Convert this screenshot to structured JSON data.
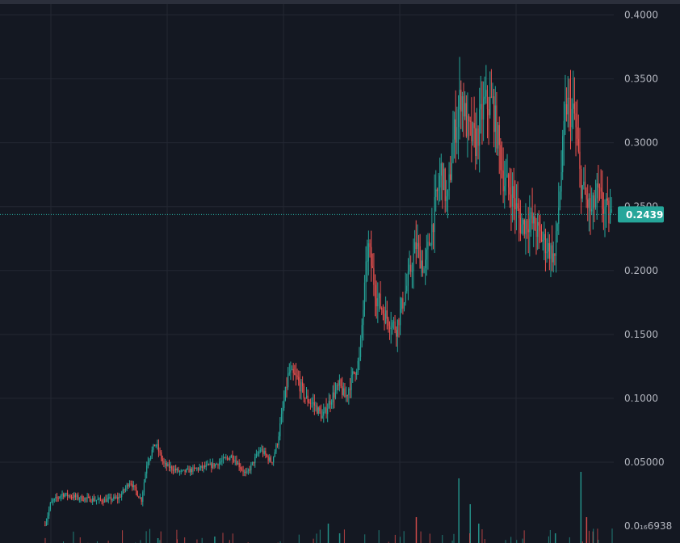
{
  "chart_data": {
    "type": "candlestick",
    "y_axis": {
      "position": "right",
      "ylim": [
        0.0,
        0.41
      ],
      "ticks": [
        {
          "value": 0.4,
          "label": "0.4000"
        },
        {
          "value": 0.35,
          "label": "0.3500"
        },
        {
          "value": 0.3,
          "label": "0.3000"
        },
        {
          "value": 0.25,
          "label": "0.2500"
        },
        {
          "value": 0.2,
          "label": "0.2000"
        },
        {
          "value": 0.15,
          "label": "0.1500"
        },
        {
          "value": 0.1,
          "label": "0.1000"
        },
        {
          "value": 0.05,
          "label": "0.05000"
        },
        {
          "value": 0.0,
          "label": "0.0₁₆6938"
        }
      ]
    },
    "grid": true,
    "current_price": {
      "value": 0.2439,
      "label": "0.2439"
    },
    "colors": {
      "background": "#141822",
      "grid": "#232733",
      "up": "#26a69a",
      "down": "#ef5350",
      "price_line": "#26a69a",
      "axis_text": "#b2b5be"
    },
    "price_path": [
      [
        0,
        0.0005
      ],
      [
        0.01,
        0.018
      ],
      [
        0.03,
        0.025
      ],
      [
        0.06,
        0.022
      ],
      [
        0.1,
        0.02
      ],
      [
        0.13,
        0.022
      ],
      [
        0.15,
        0.035
      ],
      [
        0.17,
        0.02
      ],
      [
        0.18,
        0.05
      ],
      [
        0.195,
        0.065
      ],
      [
        0.21,
        0.048
      ],
      [
        0.24,
        0.042
      ],
      [
        0.27,
        0.045
      ],
      [
        0.3,
        0.048
      ],
      [
        0.33,
        0.055
      ],
      [
        0.355,
        0.04
      ],
      [
        0.38,
        0.06
      ],
      [
        0.4,
        0.05
      ],
      [
        0.41,
        0.065
      ],
      [
        0.43,
        0.12
      ],
      [
        0.445,
        0.115
      ],
      [
        0.46,
        0.1
      ],
      [
        0.475,
        0.095
      ],
      [
        0.49,
        0.085
      ],
      [
        0.505,
        0.1
      ],
      [
        0.52,
        0.11
      ],
      [
        0.53,
        0.1
      ],
      [
        0.545,
        0.12
      ],
      [
        0.555,
        0.13
      ],
      [
        0.57,
        0.22
      ],
      [
        0.585,
        0.18
      ],
      [
        0.6,
        0.165
      ],
      [
        0.62,
        0.155
      ],
      [
        0.64,
        0.19
      ],
      [
        0.655,
        0.22
      ],
      [
        0.67,
        0.2
      ],
      [
        0.685,
        0.24
      ],
      [
        0.7,
        0.28
      ],
      [
        0.71,
        0.25
      ],
      [
        0.72,
        0.3
      ],
      [
        0.735,
        0.34
      ],
      [
        0.745,
        0.31
      ],
      [
        0.76,
        0.3
      ],
      [
        0.775,
        0.33
      ],
      [
        0.79,
        0.33
      ],
      [
        0.8,
        0.3
      ],
      [
        0.81,
        0.27
      ],
      [
        0.825,
        0.26
      ],
      [
        0.84,
        0.235
      ],
      [
        0.855,
        0.24
      ],
      [
        0.87,
        0.23
      ],
      [
        0.885,
        0.22
      ],
      [
        0.9,
        0.21
      ],
      [
        0.91,
        0.27
      ],
      [
        0.92,
        0.33
      ],
      [
        0.935,
        0.32
      ],
      [
        0.945,
        0.27
      ],
      [
        0.955,
        0.255
      ],
      [
        0.965,
        0.245
      ],
      [
        0.975,
        0.26
      ],
      [
        0.985,
        0.25
      ],
      [
        1.0,
        0.24
      ]
    ],
    "volume_spikes": [
      [
        0.5,
        0.06
      ],
      [
        0.52,
        0.03
      ],
      [
        0.655,
        0.08
      ],
      [
        0.73,
        0.2
      ],
      [
        0.75,
        0.12
      ],
      [
        0.765,
        0.06
      ],
      [
        0.9,
        0.03
      ],
      [
        0.945,
        0.22
      ],
      [
        0.955,
        0.08
      ],
      [
        0.3,
        0.02
      ],
      [
        0.2,
        0.015
      ]
    ],
    "volume_scale": 0.6,
    "candles": 430,
    "seed": 7
  }
}
